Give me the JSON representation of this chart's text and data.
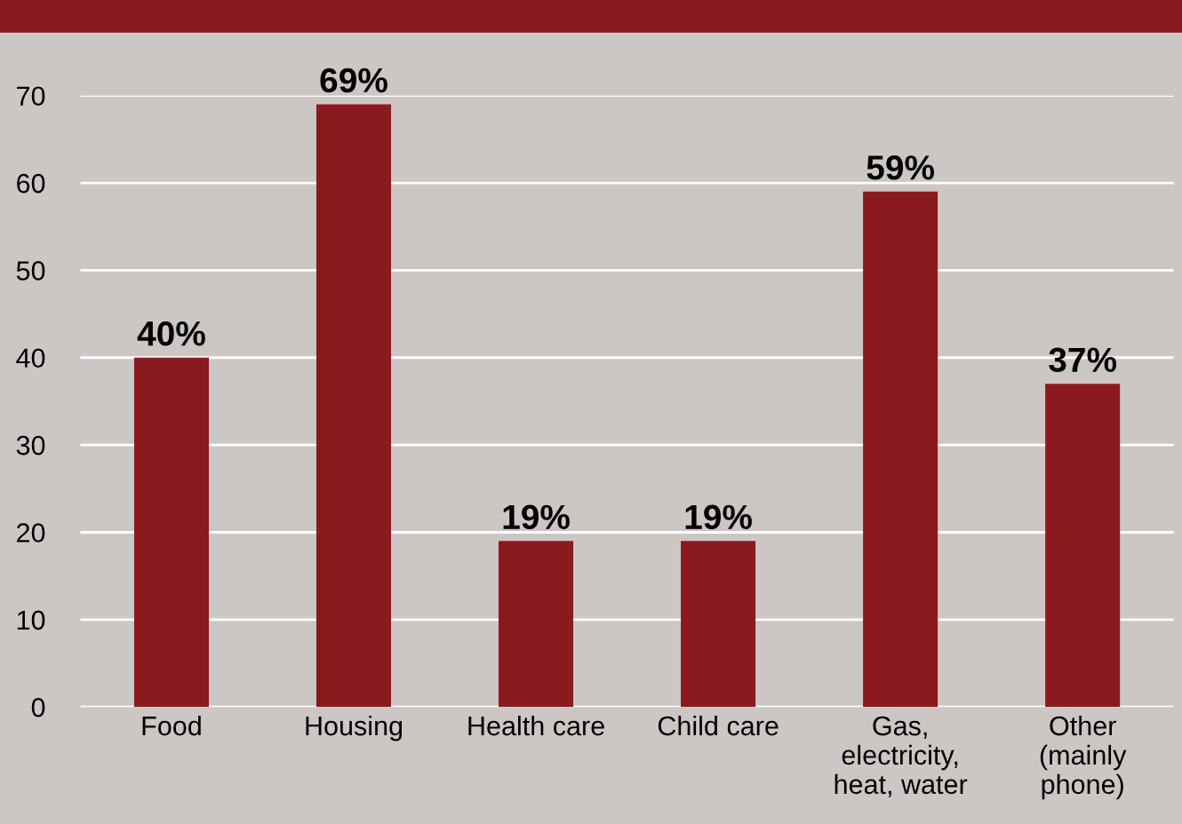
{
  "chart_data": {
    "type": "bar",
    "categories": [
      "Food",
      "Housing",
      "Health care",
      "Child care",
      "Gas,\nelectricity,\nheat, water",
      "Other\n(mainly\nphone)"
    ],
    "values": [
      40,
      69,
      19,
      19,
      59,
      37
    ],
    "value_labels": [
      "40%",
      "69%",
      "19%",
      "19%",
      "59%",
      "37%"
    ],
    "color": "#8b1a1f",
    "ylim": [
      0,
      70
    ],
    "yticks": [
      0,
      10,
      20,
      30,
      40,
      50,
      60,
      70
    ],
    "grid": "y"
  }
}
